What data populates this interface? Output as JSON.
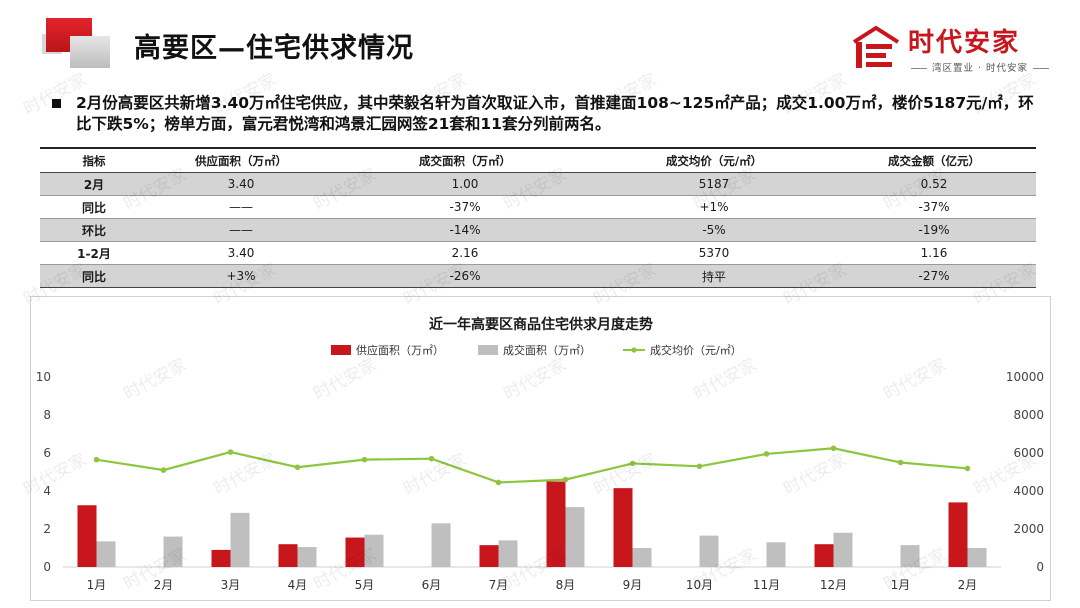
{
  "header": {
    "title": "高要区—住宅供求情况",
    "logo_name": "时代安家",
    "logo_sub": "湾区置业 · 时代安家"
  },
  "summary": "2月份高要区共新增3.40万㎡住宅供应，其中荣毅名轩为首次取证入市，首推建面108~125㎡产品；成交1.00万㎡，楼价5187元/㎡，环比下跌5%；榜单方面，富元君悦湾和鸿景汇园网签21套和11套分列前两名。",
  "table": {
    "headers": [
      "指标",
      "供应面积（万㎡）",
      "成交面积（万㎡）",
      "成交均价（元/㎡）",
      "成交金额（亿元）"
    ],
    "rows": [
      [
        "2月",
        "3.40",
        "1.00",
        "5187",
        "0.52"
      ],
      [
        "同比",
        "——",
        "-37%",
        "+1%",
        "-37%"
      ],
      [
        "环比",
        "——",
        "-14%",
        "-5%",
        "-19%"
      ],
      [
        "1-2月",
        "3.40",
        "2.16",
        "5370",
        "1.16"
      ],
      [
        "同比",
        "+3%",
        "-26%",
        "持平",
        "-27%"
      ]
    ]
  },
  "watermark": "时代安家",
  "chart_data": {
    "type": "bar",
    "title": "近一年高要区商品住宅供求月度走势",
    "categories": [
      "1月",
      "2月",
      "3月",
      "4月",
      "5月",
      "6月",
      "7月",
      "8月",
      "9月",
      "10月",
      "11月",
      "12月",
      "1月",
      "2月"
    ],
    "series": [
      {
        "name": "供应面积（万㎡）",
        "type": "bar",
        "axis": "left",
        "color": "#c8161d",
        "values": [
          3.25,
          0,
          0.9,
          1.2,
          1.55,
          0,
          1.15,
          4.5,
          4.15,
          0,
          0,
          1.2,
          0,
          3.4
        ]
      },
      {
        "name": "成交面积（万㎡）",
        "type": "bar",
        "axis": "left",
        "color": "#bfbfbf",
        "values": [
          1.35,
          1.6,
          2.85,
          1.05,
          1.7,
          2.3,
          1.4,
          3.15,
          1.0,
          1.65,
          1.3,
          1.8,
          1.15,
          1.0
        ]
      },
      {
        "name": "成交均价（元/㎡）",
        "type": "line",
        "axis": "right",
        "color": "#8cc63f",
        "values": [
          5650,
          5100,
          6050,
          5250,
          5650,
          5700,
          4450,
          4600,
          5450,
          5300,
          5950,
          6250,
          5500,
          5187
        ]
      }
    ],
    "left_axis": {
      "min": 0,
      "max": 10,
      "ticks": [
        0,
        2,
        4,
        6,
        8,
        10
      ]
    },
    "right_axis": {
      "min": 0,
      "max": 10000,
      "ticks": [
        0,
        2000,
        4000,
        6000,
        8000,
        10000
      ]
    },
    "legend_position": "top"
  }
}
